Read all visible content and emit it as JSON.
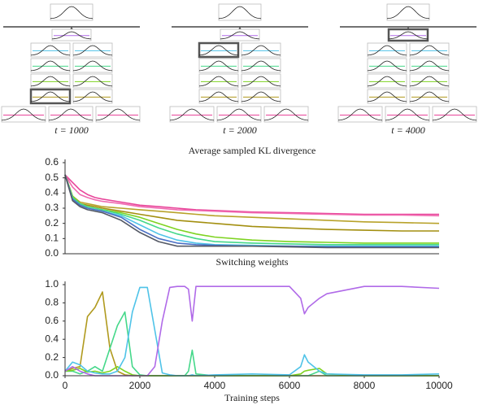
{
  "trees": [
    {
      "label": "t = 1000"
    },
    {
      "label": "t = 2000"
    },
    {
      "label": "t = 4000"
    }
  ],
  "chart_data": [
    {
      "type": "line",
      "title": "Average sampled KL divergence",
      "x": [
        0,
        200,
        400,
        600,
        800,
        1000,
        1500,
        2000,
        2500,
        3000,
        3500,
        4000,
        5000,
        6000,
        7000,
        8000,
        9000,
        10000
      ],
      "xlim": [
        0,
        10000
      ],
      "ylim": [
        0,
        0.6
      ],
      "yticks": [
        {
          "value": 0,
          "label": "0.0"
        },
        0.1,
        0.2,
        0.3,
        0.4,
        0.5,
        0.6
      ],
      "series": [
        {
          "color": "#e8459a",
          "values": [
            0.52,
            0.47,
            0.42,
            0.39,
            0.37,
            0.36,
            0.34,
            0.32,
            0.31,
            0.3,
            0.29,
            0.285,
            0.275,
            0.27,
            0.265,
            0.26,
            0.26,
            0.26
          ]
        },
        {
          "color": "#f06ab0",
          "values": [
            0.52,
            0.44,
            0.39,
            0.37,
            0.355,
            0.345,
            0.33,
            0.31,
            0.3,
            0.29,
            0.285,
            0.28,
            0.27,
            0.265,
            0.26,
            0.255,
            0.255,
            0.25
          ]
        },
        {
          "color": "#b8a22a",
          "values": [
            0.52,
            0.38,
            0.34,
            0.33,
            0.32,
            0.31,
            0.3,
            0.29,
            0.28,
            0.27,
            0.26,
            0.25,
            0.24,
            0.23,
            0.22,
            0.21,
            0.205,
            0.2
          ]
        },
        {
          "color": "#a38f10",
          "values": [
            0.52,
            0.38,
            0.33,
            0.32,
            0.31,
            0.3,
            0.28,
            0.26,
            0.24,
            0.22,
            0.21,
            0.2,
            0.18,
            0.17,
            0.16,
            0.155,
            0.15,
            0.15
          ]
        },
        {
          "color": "#7ed321",
          "values": [
            0.52,
            0.38,
            0.33,
            0.31,
            0.3,
            0.29,
            0.27,
            0.24,
            0.2,
            0.16,
            0.13,
            0.11,
            0.09,
            0.08,
            0.075,
            0.07,
            0.07,
            0.07
          ]
        },
        {
          "color": "#45d88a",
          "values": [
            0.52,
            0.37,
            0.33,
            0.31,
            0.3,
            0.29,
            0.26,
            0.22,
            0.17,
            0.13,
            0.1,
            0.08,
            0.07,
            0.065,
            0.06,
            0.06,
            0.06,
            0.06
          ]
        },
        {
          "color": "#4fc3e8",
          "values": [
            0.52,
            0.36,
            0.32,
            0.3,
            0.29,
            0.28,
            0.25,
            0.19,
            0.13,
            0.09,
            0.07,
            0.06,
            0.055,
            0.05,
            0.05,
            0.05,
            0.05,
            0.05
          ]
        },
        {
          "color": "#4a6fc4",
          "values": [
            0.52,
            0.36,
            0.32,
            0.3,
            0.29,
            0.28,
            0.24,
            0.16,
            0.1,
            0.07,
            0.06,
            0.055,
            0.05,
            0.05,
            0.045,
            0.045,
            0.045,
            0.045
          ]
        },
        {
          "color": "#555a66",
          "values": [
            0.52,
            0.35,
            0.31,
            0.29,
            0.28,
            0.27,
            0.22,
            0.14,
            0.08,
            0.05,
            0.05,
            0.05,
            0.05,
            0.045,
            0.04,
            0.04,
            0.04,
            0.04
          ]
        }
      ]
    },
    {
      "type": "line",
      "title": "Switching weights",
      "xlabel": "Training steps",
      "x": [
        0,
        200,
        400,
        600,
        800,
        1000,
        1200,
        1400,
        1600,
        1800,
        2000,
        2200,
        2400,
        2600,
        2800,
        3000,
        3200,
        3300,
        3400,
        3500,
        4000,
        5000,
        6000,
        6300,
        6400,
        6500,
        6800,
        7000,
        8000,
        9000,
        10000
      ],
      "xlim": [
        0,
        10000
      ],
      "xticks": [
        0,
        2000,
        4000,
        6000,
        8000,
        10000
      ],
      "ylim": [
        0,
        1
      ],
      "yticks": [
        {
          "value": 0,
          "label": "0.0"
        },
        0.2,
        0.4,
        0.6,
        0.8,
        {
          "value": 1,
          "label": "1.0"
        }
      ],
      "series": [
        {
          "color": "#b09a1e",
          "values": [
            0.05,
            0.08,
            0.1,
            0.65,
            0.75,
            0.92,
            0.3,
            0.05,
            0.01,
            0,
            0,
            0,
            0,
            0,
            0,
            0,
            0,
            0,
            0,
            0,
            0,
            0,
            0,
            0,
            0,
            0,
            0,
            0,
            0,
            0,
            0
          ]
        },
        {
          "color": "#45d88a",
          "values": [
            0.05,
            0.05,
            0.02,
            0.05,
            0.1,
            0.05,
            0.3,
            0.55,
            0.7,
            0.1,
            0.01,
            0,
            0,
            0,
            0,
            0,
            0,
            0.05,
            0.28,
            0.02,
            0,
            0,
            0,
            0,
            0,
            0,
            0.05,
            0,
            0,
            0,
            0
          ]
        },
        {
          "color": "#7ed321",
          "values": [
            0.05,
            0.06,
            0.08,
            0.04,
            0.05,
            0.03,
            0.05,
            0.1,
            0.05,
            0.01,
            0,
            0,
            0,
            0,
            0,
            0,
            0,
            0,
            0,
            0,
            0,
            0,
            0,
            0.02,
            0.05,
            0.06,
            0.08,
            0.02,
            0,
            0,
            0
          ]
        },
        {
          "color": "#4fc3e8",
          "values": [
            0.05,
            0.15,
            0.12,
            0.05,
            0.03,
            0.02,
            0.02,
            0.05,
            0.2,
            0.7,
            0.97,
            0.97,
            0.5,
            0.03,
            0.01,
            0,
            0,
            0,
            0.01,
            0,
            0.01,
            0.02,
            0.01,
            0.1,
            0.23,
            0.15,
            0.05,
            0.02,
            0.01,
            0.01,
            0.02
          ]
        },
        {
          "color": "#b06ae8",
          "values": [
            0.05,
            0.1,
            0.05,
            0.02,
            0,
            0,
            0,
            0,
            0,
            0,
            0,
            0,
            0.1,
            0.6,
            0.97,
            0.98,
            0.98,
            0.95,
            0.6,
            0.98,
            0.98,
            0.98,
            0.98,
            0.85,
            0.68,
            0.75,
            0.85,
            0.9,
            0.98,
            0.98,
            0.96
          ]
        }
      ]
    }
  ]
}
